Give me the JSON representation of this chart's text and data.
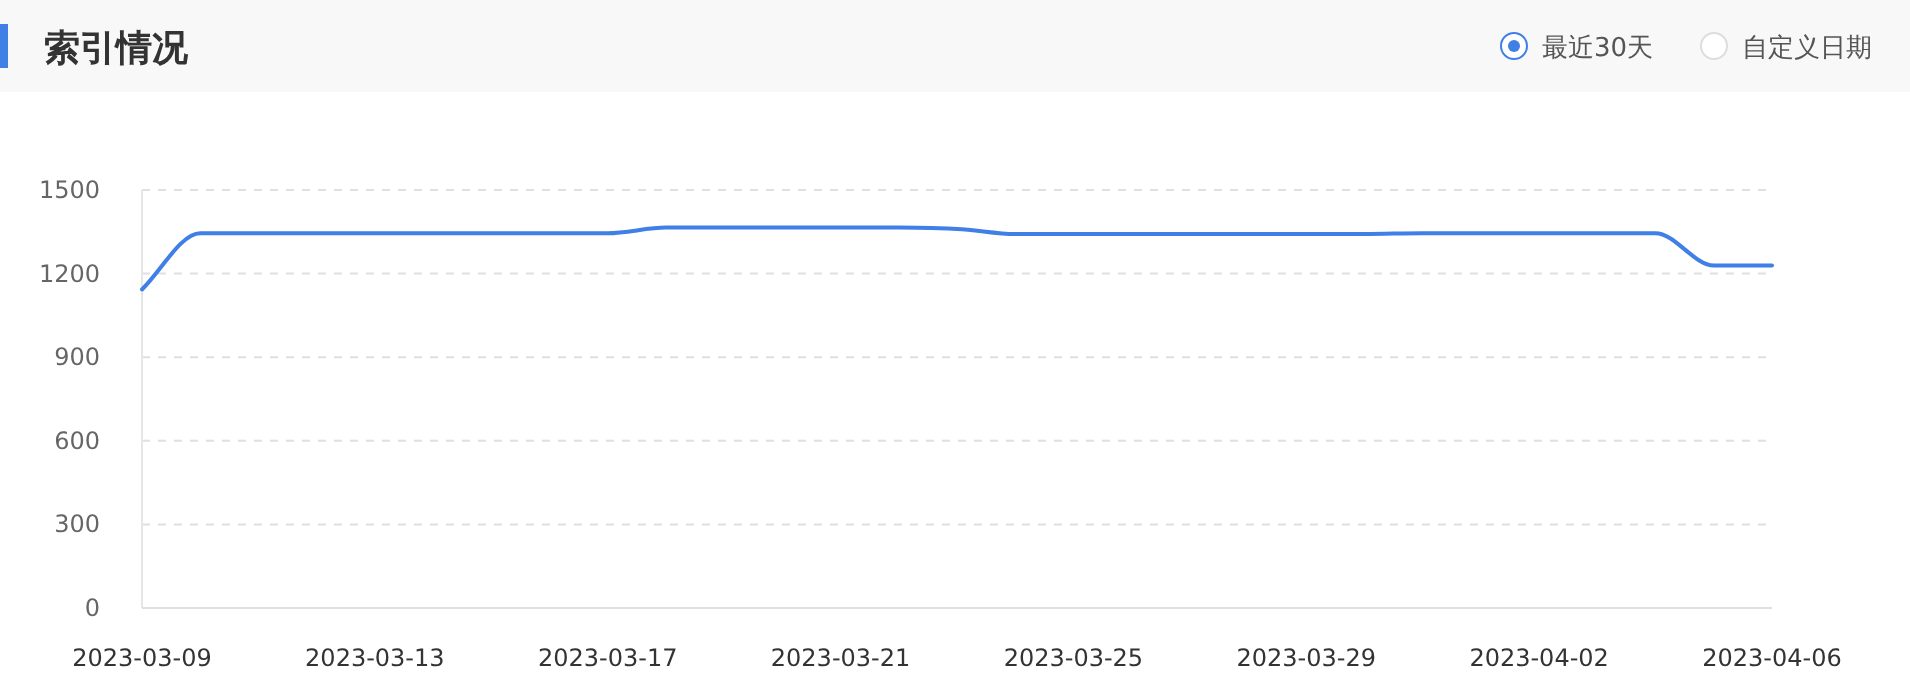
{
  "chart_data": {
    "type": "line",
    "title": "索引情况",
    "annotations": [
      "最近30天",
      "自定义日期"
    ],
    "categories": [
      "2023-03-09",
      null,
      null,
      null,
      "2023-03-13",
      null,
      null,
      null,
      "2023-03-17",
      null,
      null,
      null,
      "2023-03-21",
      null,
      null,
      null,
      "2023-03-25",
      null,
      null,
      null,
      "2023-03-29",
      null,
      null,
      null,
      "2023-04-02",
      null,
      null,
      null,
      "2023-04-06"
    ],
    "series": [
      {
        "color": "#3f7fe6",
        "values": [
          1143,
          1345,
          1345,
          1345,
          1345,
          1345,
          1345,
          1345,
          1345,
          1365,
          1365,
          1365,
          1365,
          1365,
          1360,
          1342,
          1342,
          1342,
          1342,
          1342,
          1342,
          1342,
          1345,
          1345,
          1345,
          1345,
          1345,
          1229,
          1229
        ]
      }
    ],
    "ylim": [
      0,
      1500
    ],
    "yticks": [
      0,
      300,
      600,
      900,
      1200,
      1500
    ],
    "grid": "y",
    "marker": "none",
    "line_style": "solid"
  }
}
